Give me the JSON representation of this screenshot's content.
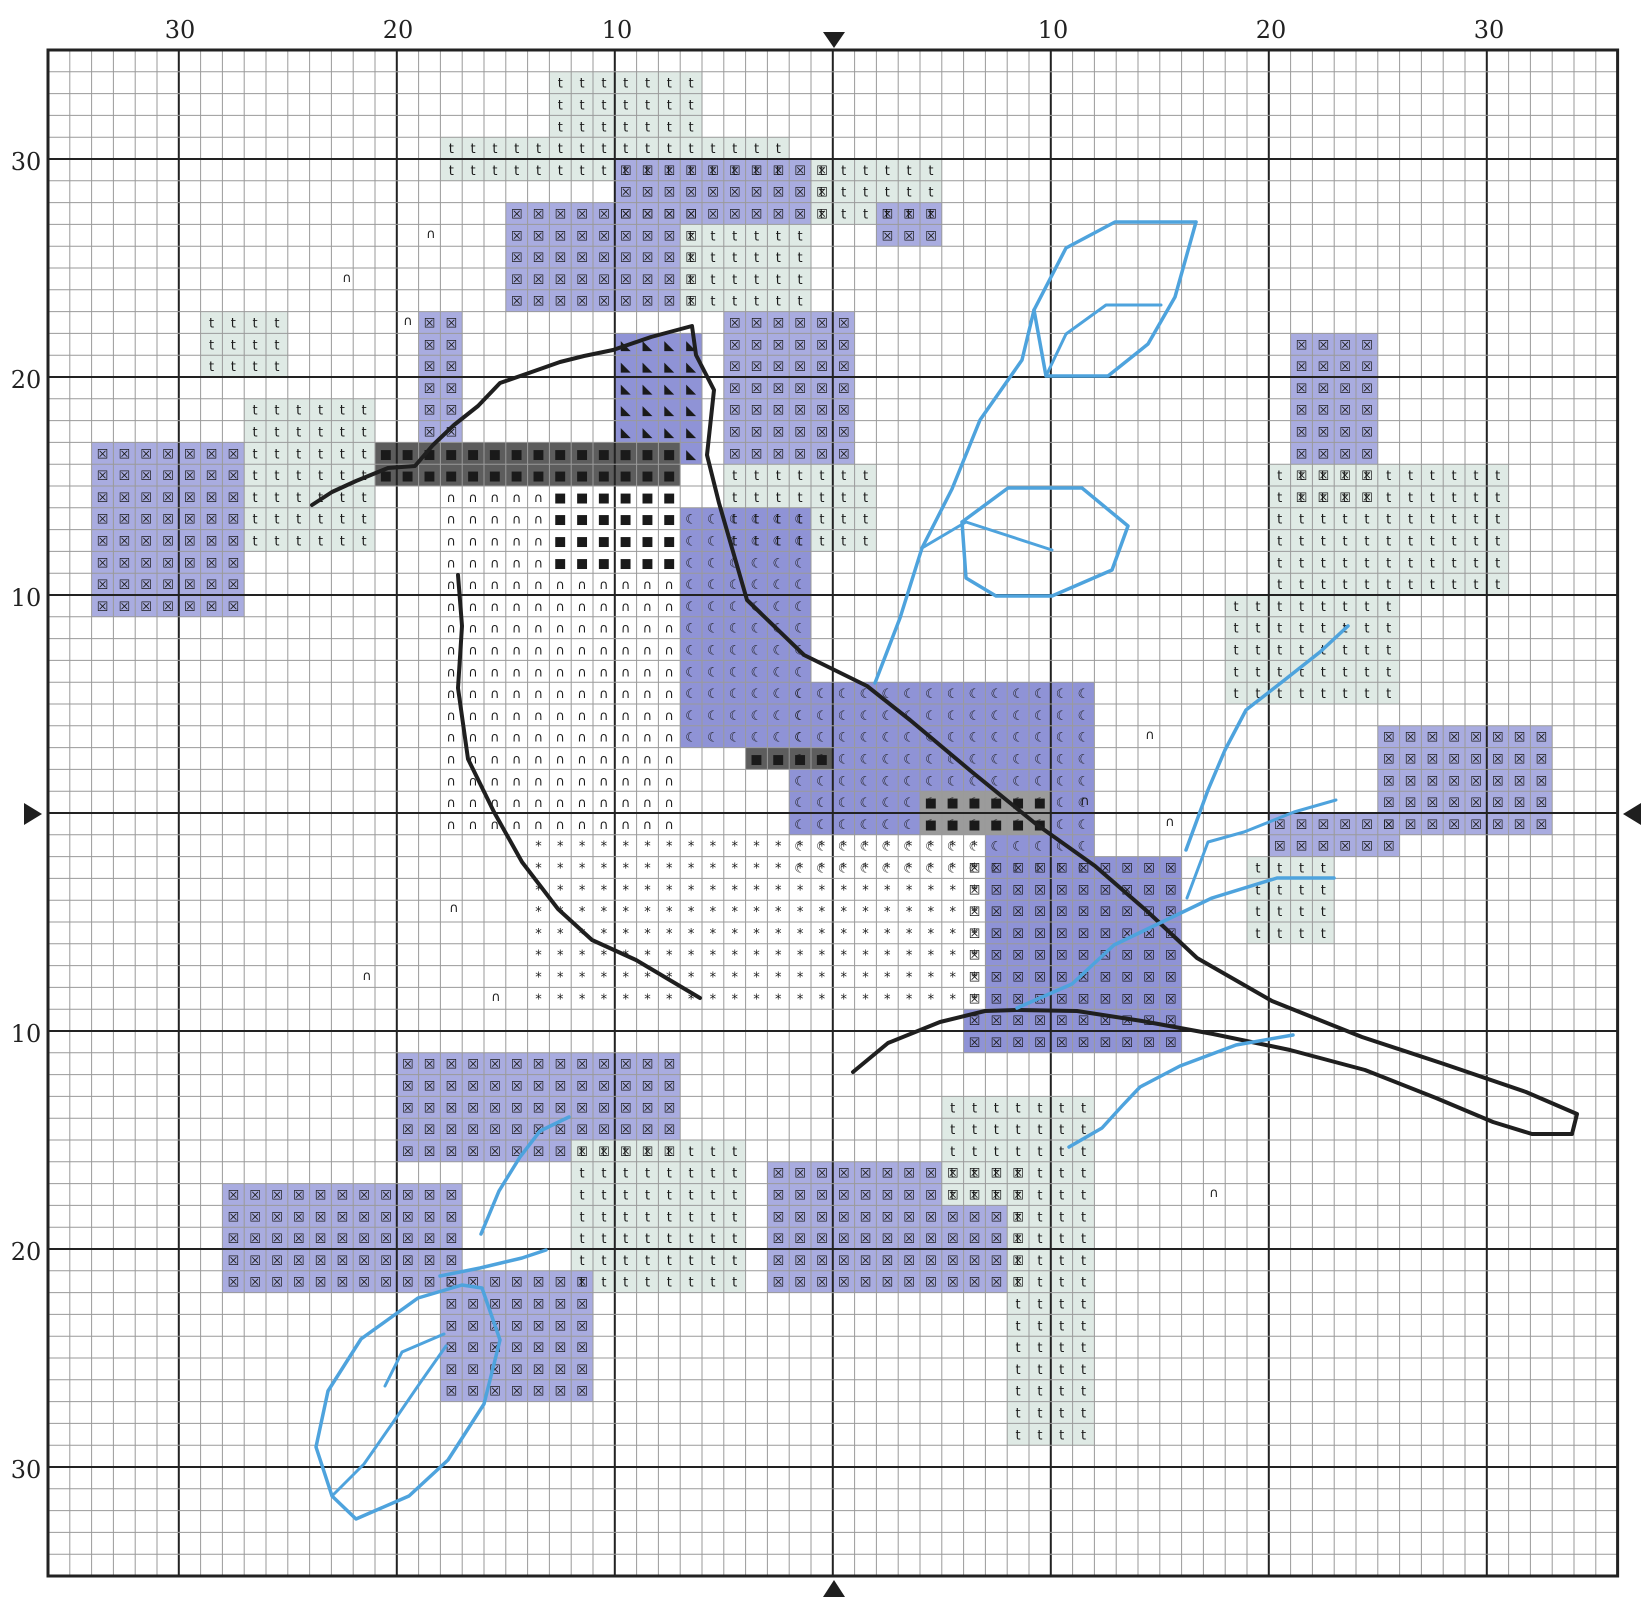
{
  "chart_data": {
    "type": "cross-stitch-pattern",
    "grid": {
      "columns": 72,
      "rows": 70
    },
    "axes": {
      "top_labels": [
        "30",
        "20",
        "10",
        "10",
        "20",
        "30"
      ],
      "left_labels": [
        "30",
        "20",
        "10",
        "10",
        "20",
        "30"
      ]
    },
    "colors": {
      "grid_line": "#9a9a9a",
      "major_line": "#222222",
      "lavender": "#a9ace0",
      "pale_green": "#dfeae5",
      "dark_gray": "#5d5d5d",
      "mid_gray": "#9b9b9b",
      "outline": "#1f1f1f",
      "branch_blue": "#4ea3dd"
    },
    "symbols": {
      "pale_green": "t",
      "lavender": "☒",
      "blue_dark": "◣",
      "blue_moon": "☾",
      "black": "■",
      "white": "∩",
      "star": "*"
    }
  }
}
